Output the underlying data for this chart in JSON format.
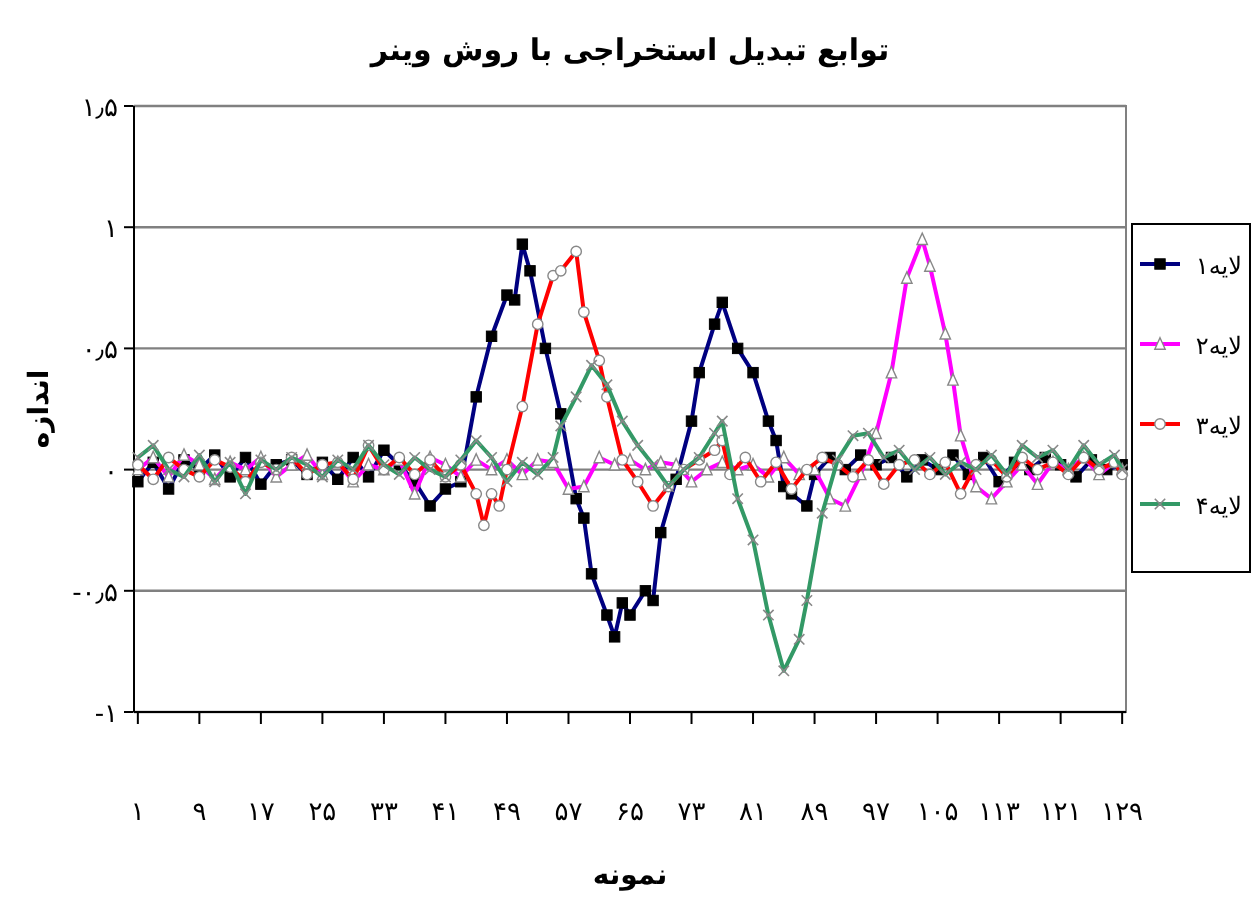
{
  "chart_data": {
    "type": "line",
    "title": "توابع تبدیل استخراجی با روش وینر",
    "xlabel": "نمونه",
    "ylabel": "اندازه",
    "xlim": [
      0.5,
      129.5
    ],
    "xticks": [
      {
        "value": 1,
        "label": "۱"
      },
      {
        "value": 9,
        "label": "۹"
      },
      {
        "value": 17,
        "label": "۱۷"
      },
      {
        "value": 25,
        "label": "۲۵"
      },
      {
        "value": 33,
        "label": "۳۳"
      },
      {
        "value": 41,
        "label": "۴۱"
      },
      {
        "value": 49,
        "label": "۴۹"
      },
      {
        "value": 57,
        "label": "۵۷"
      },
      {
        "value": 65,
        "label": "۶۵"
      },
      {
        "value": 73,
        "label": "۷۳"
      },
      {
        "value": 81,
        "label": "۸۱"
      },
      {
        "value": 89,
        "label": "۸۹"
      },
      {
        "value": 97,
        "label": "۹۷"
      },
      {
        "value": 105,
        "label": "۱۰۵"
      },
      {
        "value": 113,
        "label": "۱۱۳"
      },
      {
        "value": 121,
        "label": "۱۲۱"
      },
      {
        "value": 129,
        "label": "۱۲۹"
      }
    ],
    "ylim": [
      -1,
      1.5
    ],
    "yticks": [
      {
        "value": -1,
        "label": "-۱"
      },
      {
        "value": -0.5,
        "label": "-۰٫۵"
      },
      {
        "value": 0,
        "label": "۰"
      },
      {
        "value": 0.5,
        "label": "۰٫۵"
      },
      {
        "value": 1,
        "label": "۱"
      },
      {
        "value": 1.5,
        "label": "۱٫۵"
      }
    ],
    "grid": "y",
    "legend": "right",
    "line_style": "solid",
    "series": [
      {
        "name": "لایه۱",
        "color": "#000080",
        "marker": "square",
        "x": [
          1,
          3,
          5,
          7,
          9,
          11,
          13,
          15,
          17,
          19,
          21,
          23,
          25,
          27,
          29,
          31,
          33,
          35,
          37,
          39,
          41,
          43,
          45,
          47,
          49,
          50,
          51,
          52,
          54,
          56,
          58,
          59,
          60,
          62,
          63,
          64,
          65,
          67,
          68,
          69,
          71,
          73,
          74,
          76,
          77,
          79,
          81,
          83,
          84,
          85,
          86,
          88,
          89,
          91,
          93,
          95,
          97,
          99,
          101,
          103,
          105,
          107,
          109,
          111,
          113,
          115,
          117,
          119,
          121,
          123,
          125,
          127,
          129
        ],
        "values": [
          -0.05,
          0.03,
          -0.08,
          0.04,
          0.0,
          0.06,
          -0.03,
          0.05,
          -0.06,
          0.02,
          0.04,
          -0.02,
          0.03,
          -0.04,
          0.05,
          -0.03,
          0.08,
          0.02,
          -0.05,
          -0.15,
          -0.08,
          -0.05,
          0.3,
          0.55,
          0.72,
          0.7,
          0.93,
          0.82,
          0.5,
          0.23,
          -0.12,
          -0.2,
          -0.43,
          -0.6,
          -0.69,
          -0.55,
          -0.6,
          -0.5,
          -0.54,
          -0.26,
          -0.04,
          0.2,
          0.4,
          0.6,
          0.69,
          0.5,
          0.4,
          0.2,
          0.12,
          -0.07,
          -0.1,
          -0.15,
          -0.02,
          0.05,
          0.0,
          0.06,
          0.02,
          0.05,
          -0.03,
          0.04,
          0.0,
          0.06,
          -0.02,
          0.05,
          -0.05,
          0.03,
          0.0,
          0.05,
          0.02,
          -0.03,
          0.04,
          0.0,
          0.02
        ]
      },
      {
        "name": "لایه۲",
        "color": "#ff00ff",
        "marker": "triangle",
        "x": [
          1,
          3,
          5,
          7,
          9,
          11,
          13,
          15,
          17,
          19,
          21,
          23,
          25,
          27,
          29,
          31,
          33,
          35,
          37,
          39,
          41,
          43,
          45,
          47,
          49,
          51,
          53,
          55,
          57,
          59,
          61,
          63,
          65,
          67,
          69,
          71,
          73,
          75,
          77,
          79,
          81,
          83,
          85,
          87,
          89,
          91,
          93,
          95,
          97,
          99,
          101,
          103,
          104,
          106,
          107,
          108,
          110,
          112,
          114,
          116,
          118,
          120,
          122,
          124,
          126,
          128,
          129
        ],
        "values": [
          0.0,
          0.05,
          -0.03,
          0.06,
          0.02,
          -0.04,
          0.03,
          0.0,
          0.05,
          -0.03,
          0.02,
          0.06,
          -0.02,
          0.03,
          -0.05,
          0.02,
          0.0,
          0.04,
          -0.1,
          0.05,
          0.02,
          -0.03,
          0.04,
          0.0,
          0.04,
          -0.02,
          0.04,
          0.03,
          -0.08,
          -0.07,
          0.05,
          0.02,
          0.04,
          0.0,
          0.03,
          0.02,
          -0.05,
          0.0,
          0.03,
          0.0,
          0.02,
          -0.03,
          0.05,
          -0.02,
          0.0,
          -0.12,
          -0.15,
          -0.02,
          0.15,
          0.4,
          0.79,
          0.95,
          0.84,
          0.56,
          0.37,
          0.14,
          -0.07,
          -0.12,
          -0.05,
          0.02,
          -0.06,
          0.03,
          0.0,
          0.05,
          -0.02,
          0.03,
          0.0
        ]
      },
      {
        "name": "لایه۳",
        "color": "#ff0000",
        "marker": "circle",
        "x": [
          1,
          3,
          5,
          7,
          9,
          11,
          13,
          15,
          17,
          19,
          21,
          23,
          25,
          27,
          29,
          31,
          33,
          35,
          37,
          39,
          41,
          43,
          45,
          46,
          47,
          48,
          49,
          51,
          53,
          55,
          56,
          58,
          59,
          61,
          62,
          64,
          66,
          68,
          70,
          72,
          74,
          76,
          77,
          78,
          80,
          82,
          84,
          86,
          88,
          90,
          92,
          94,
          96,
          98,
          100,
          102,
          104,
          106,
          108,
          110,
          112,
          114,
          116,
          118,
          120,
          122,
          124,
          126,
          128,
          129
        ],
        "values": [
          0.02,
          -0.04,
          0.05,
          0.0,
          -0.03,
          0.04,
          0.01,
          -0.05,
          0.03,
          0.0,
          0.05,
          -0.02,
          0.02,
          0.03,
          -0.04,
          0.1,
          0.0,
          0.05,
          -0.02,
          0.04,
          -0.03,
          0.02,
          -0.1,
          -0.23,
          -0.1,
          -0.15,
          0.0,
          0.26,
          0.6,
          0.8,
          0.82,
          0.9,
          0.65,
          0.45,
          0.3,
          0.04,
          -0.05,
          -0.15,
          -0.07,
          0.0,
          0.04,
          0.08,
          0.12,
          -0.02,
          0.05,
          -0.05,
          0.03,
          -0.08,
          0.0,
          0.05,
          0.02,
          -0.03,
          0.04,
          -0.06,
          0.02,
          0.04,
          -0.02,
          0.03,
          -0.1,
          0.02,
          0.04,
          -0.03,
          0.05,
          0.0,
          0.03,
          -0.02,
          0.05,
          0.0,
          0.03,
          -0.02
        ]
      },
      {
        "name": "لایه۴",
        "color": "#339966",
        "marker": "cross",
        "x": [
          1,
          3,
          5,
          7,
          9,
          11,
          13,
          15,
          17,
          19,
          21,
          23,
          25,
          27,
          29,
          31,
          33,
          35,
          37,
          39,
          41,
          43,
          45,
          47,
          49,
          51,
          53,
          55,
          56,
          58,
          60,
          62,
          64,
          66,
          68,
          70,
          72,
          74,
          76,
          77,
          79,
          81,
          83,
          85,
          87,
          88,
          90,
          92,
          94,
          96,
          98,
          100,
          102,
          104,
          106,
          108,
          110,
          112,
          114,
          116,
          118,
          120,
          122,
          124,
          126,
          128,
          129
        ],
        "values": [
          0.05,
          0.1,
          0.0,
          -0.03,
          0.06,
          -0.05,
          0.03,
          -0.1,
          0.04,
          0.0,
          0.05,
          0.02,
          -0.03,
          0.04,
          0.0,
          0.1,
          0.02,
          -0.02,
          0.05,
          0.0,
          -0.03,
          0.04,
          0.12,
          0.05,
          -0.05,
          0.03,
          -0.02,
          0.05,
          0.18,
          0.3,
          0.43,
          0.35,
          0.2,
          0.1,
          0.02,
          -0.07,
          0.0,
          0.05,
          0.15,
          0.2,
          -0.12,
          -0.29,
          -0.6,
          -0.83,
          -0.7,
          -0.54,
          -0.18,
          0.04,
          0.14,
          0.15,
          0.05,
          0.08,
          0.0,
          0.05,
          -0.02,
          0.03,
          0.0,
          0.06,
          -0.02,
          0.1,
          0.05,
          0.08,
          0.0,
          0.1,
          0.02,
          0.06,
          0.0
        ]
      }
    ]
  }
}
